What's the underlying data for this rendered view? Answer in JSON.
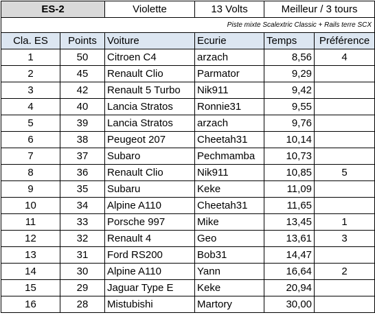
{
  "header": {
    "stage": "ES-2",
    "color": "Violette",
    "voltage": "13 Volts",
    "rule": "Meilleur / 3 tours"
  },
  "subtitle": "Piste mixte Scalextric Classic + Rails terre SCX",
  "columns": {
    "rank": "Cla. ES",
    "points": "Points",
    "car": "Voiture",
    "team": "Ecurie",
    "time": "Temps",
    "preference": "Préférence"
  },
  "rows": [
    {
      "rank": "1",
      "points": "50",
      "car": "Citroen C4",
      "team": "arzach",
      "time": "8,56",
      "preference": "4"
    },
    {
      "rank": "2",
      "points": "45",
      "car": "Renault Clio",
      "team": "Parmator",
      "time": "9,29",
      "preference": ""
    },
    {
      "rank": "3",
      "points": "42",
      "car": "Renault 5 Turbo",
      "team": "Nik911",
      "time": "9,42",
      "preference": ""
    },
    {
      "rank": "4",
      "points": "40",
      "car": "Lancia Stratos",
      "team": "Ronnie31",
      "time": "9,55",
      "preference": ""
    },
    {
      "rank": "5",
      "points": "39",
      "car": "Lancia Stratos",
      "team": "arzach",
      "time": "9,76",
      "preference": ""
    },
    {
      "rank": "6",
      "points": "38",
      "car": "Peugeot 207",
      "team": "Cheetah31",
      "time": "10,14",
      "preference": ""
    },
    {
      "rank": "7",
      "points": "37",
      "car": "Subaro",
      "team": "Pechmamba",
      "time": "10,73",
      "preference": ""
    },
    {
      "rank": "8",
      "points": "36",
      "car": "Renault Clio",
      "team": "Nik911",
      "time": "10,85",
      "preference": "5"
    },
    {
      "rank": "9",
      "points": "35",
      "car": "Subaru",
      "team": "Keke",
      "time": "11,09",
      "preference": ""
    },
    {
      "rank": "10",
      "points": "34",
      "car": "Alpine A110",
      "team": "Cheetah31",
      "time": "11,65",
      "preference": ""
    },
    {
      "rank": "11",
      "points": "33",
      "car": "Porsche 997",
      "team": "Mike",
      "time": "13,45",
      "preference": "1"
    },
    {
      "rank": "12",
      "points": "32",
      "car": "Renault 4",
      "team": "Geo",
      "time": "13,61",
      "preference": "3"
    },
    {
      "rank": "13",
      "points": "31",
      "car": "Ford RS200",
      "team": "Bob31",
      "time": "14,47",
      "preference": ""
    },
    {
      "rank": "14",
      "points": "30",
      "car": "Alpine A110",
      "team": "Yann",
      "time": "16,64",
      "preference": "2"
    },
    {
      "rank": "15",
      "points": "29",
      "car": "Jaguar Type E",
      "team": "Keke",
      "time": "20,94",
      "preference": ""
    },
    {
      "rank": "16",
      "points": "28",
      "car": "Mistubishi",
      "team": "Martory",
      "time": "30,00",
      "preference": ""
    }
  ]
}
